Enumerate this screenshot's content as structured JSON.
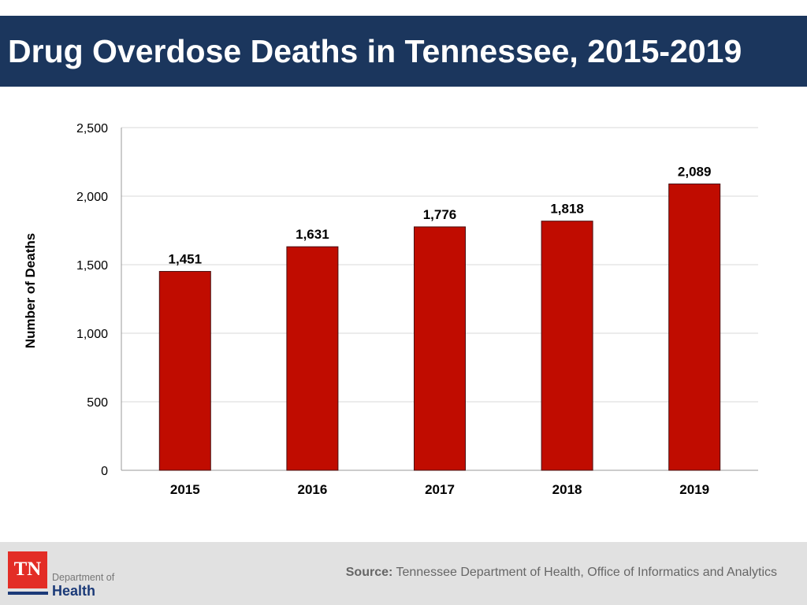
{
  "header": {
    "title": "Drug Overdose Deaths in Tennessee, 2015-2019"
  },
  "chart_data": {
    "type": "bar",
    "categories": [
      "2015",
      "2016",
      "2017",
      "2018",
      "2019"
    ],
    "values": [
      1451,
      1631,
      1776,
      1818,
      2089
    ],
    "data_labels": [
      "1,451",
      "1,631",
      "1,776",
      "1,818",
      "2,089"
    ],
    "ylabel": "Number of Deaths",
    "xlabel": "",
    "ylim": [
      0,
      2500
    ],
    "yticks": [
      0,
      500,
      1000,
      1500,
      2000,
      2500
    ],
    "ytick_labels": [
      "0",
      "500",
      "1,000",
      "1,500",
      "2,000",
      "2,500"
    ],
    "grid": true,
    "bar_color": "#c00c00"
  },
  "footer": {
    "logo": {
      "mark": "TN",
      "line1": "Department of",
      "line2": "Health"
    },
    "source_label": "Source:",
    "source_text": "Tennessee Department of Health, Office of Informatics and Analytics"
  }
}
